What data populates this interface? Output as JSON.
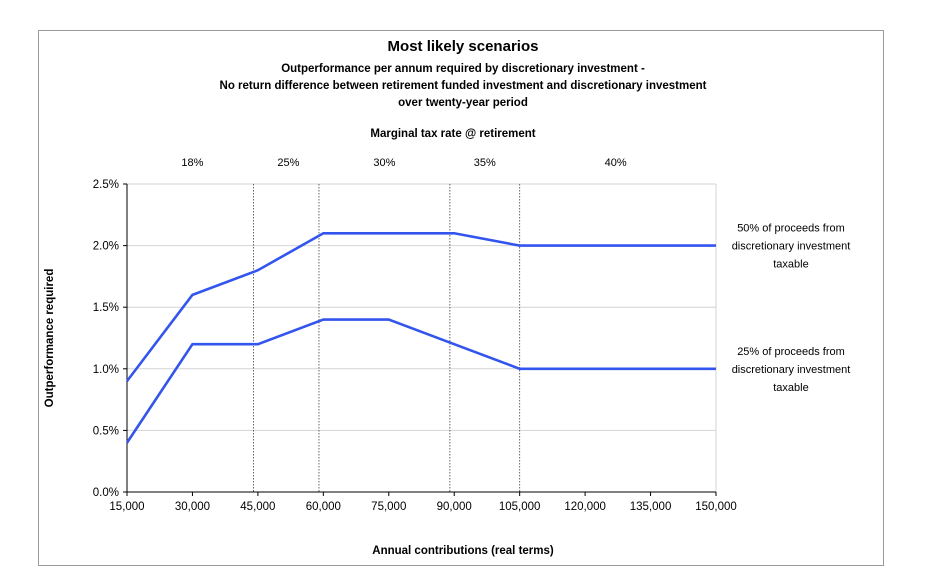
{
  "chart_data": {
    "type": "line",
    "title": "Most likely scenarios",
    "subtitle_lines": [
      "Outperformance per annum required by discretionary investment -",
      "No return difference between retirement funded investment and discretionary investment",
      "over twenty-year period"
    ],
    "xlabel": "Annual contributions (real terms)",
    "ylabel": "Outperformance required",
    "x": [
      15000,
      30000,
      45000,
      60000,
      75000,
      90000,
      105000,
      120000,
      135000,
      150000
    ],
    "x_tick_labels": [
      "15,000",
      "30,000",
      "45,000",
      "60,000",
      "75,000",
      "90,000",
      "105,000",
      "120,000",
      "135,000",
      "150,000"
    ],
    "xlim": [
      15000,
      150000
    ],
    "ylim": [
      0,
      0.025
    ],
    "y_ticks": [
      0,
      0.005,
      0.01,
      0.015,
      0.02,
      0.025
    ],
    "y_tick_labels": [
      "0.0%",
      "0.5%",
      "1.0%",
      "1.5%",
      "2.0%",
      "2.5%"
    ],
    "grid": "horizontal",
    "series": [
      {
        "values": [
          0.009,
          0.016,
          0.018,
          0.021,
          0.021,
          0.021,
          0.02,
          0.02,
          0.02,
          0.02
        ],
        "color": "#3355ee",
        "annotation_lines": [
          "50% of proceeds from",
          "discretionary investment",
          "taxable"
        ]
      },
      {
        "values": [
          0.004,
          0.012,
          0.012,
          0.014,
          0.014,
          0.012,
          0.01,
          0.01,
          0.01,
          0.01
        ],
        "color": "#3355ee",
        "annotation_lines": [
          "25% of proceeds from",
          "discretionary investment",
          "taxable"
        ]
      }
    ],
    "tax_bands": {
      "title": "Marginal tax rate @ retirement",
      "boundaries": [
        44000,
        59000,
        89000,
        105000
      ],
      "labels": [
        {
          "label": "18%",
          "x": 30000
        },
        {
          "label": "25%",
          "x": 52000
        },
        {
          "label": "30%",
          "x": 74000
        },
        {
          "label": "35%",
          "x": 97000
        },
        {
          "label": "40%",
          "x": 127000
        }
      ]
    }
  }
}
